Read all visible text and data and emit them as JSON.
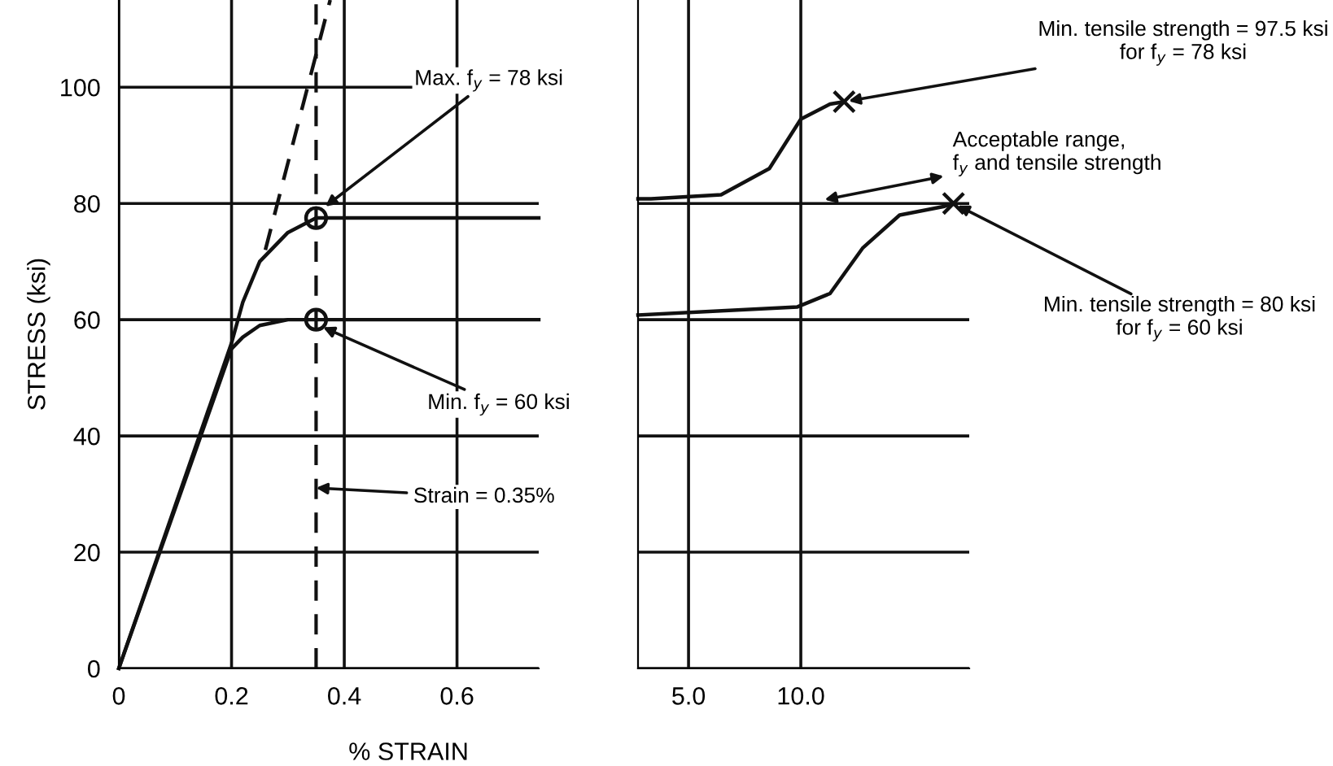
{
  "chart_data": [
    {
      "type": "line",
      "xlabel": "% STRAIN",
      "ylabel": "STRESS (ksi)",
      "xlim": [
        0,
        0.745
      ],
      "ylim": [
        0,
        115
      ],
      "xticks": [
        0,
        0.2,
        0.4,
        0.6
      ],
      "yticks": [
        0,
        20,
        40,
        60,
        80,
        100
      ],
      "grid": true,
      "series": [
        {
          "color": "#111111",
          "x": [
            0,
            0.2,
            0.22,
            0.25,
            0.3,
            0.35,
            0.745
          ],
          "values": [
            0,
            56,
            63,
            70,
            75,
            77.5,
            77.5
          ]
        },
        {
          "color": "#111111",
          "x": [
            0,
            0.2,
            0.22,
            0.25,
            0.3,
            0.35,
            0.745
          ],
          "values": [
            0,
            55,
            57,
            59,
            60,
            60,
            60
          ]
        },
        {
          "color": "#111111",
          "line_style": "dashed",
          "x": [
            0.26,
            0.375
          ],
          "values": [
            72,
            115
          ]
        },
        {
          "type": "scatter",
          "marker": "circle",
          "color": "#111111",
          "x": [
            0.35,
            0.35
          ],
          "values": [
            77.5,
            60
          ]
        }
      ],
      "ref_lines": [
        {
          "axis": "x",
          "value": 0.35,
          "color": "#111111",
          "line_style": "dashed",
          "label": "Strain = 0.35%"
        }
      ],
      "annotations": [
        {
          "text": "Max. f$_{y}$ = 78 ksi",
          "x": 0.36,
          "y": 79
        },
        {
          "text": "Min. f$_{y}$ = 60 ksi",
          "x": 0.355,
          "y": 59
        }
      ]
    },
    {
      "type": "line",
      "xlim": [
        2.75,
        17.5
      ],
      "ylim": [
        0,
        115
      ],
      "xticks": [
        {
          "value": 5,
          "label": "5.0"
        },
        {
          "value": 10,
          "label": "10.0"
        }
      ],
      "yticks": [
        0,
        20,
        40,
        60,
        80
      ],
      "tick_labels": "x",
      "grid": true,
      "series": [
        {
          "color": "#111111",
          "x": [
            2.75,
            3.33,
            6.45,
            8.6,
            10,
            11.3,
            11.93
          ],
          "values": [
            80.8,
            80.8,
            81.5,
            86,
            94.5,
            97.1,
            97.5
          ]
        },
        {
          "color": "#111111",
          "x": [
            2.75,
            9.85,
            11.3,
            12.75,
            14.4,
            16.4,
            16.8
          ],
          "values": [
            60.8,
            62.2,
            64.5,
            72.3,
            78,
            79.5,
            80
          ]
        },
        {
          "type": "scatter",
          "marker": "cross",
          "color": "#111111",
          "x": [
            11.93,
            16.8
          ],
          "values": [
            97.5,
            80
          ]
        }
      ],
      "annotations": [
        {
          "text": "Min. tensile strength = 97.5 ksi\nfor f$_{y}$ = 78 ksi",
          "x": 11.93,
          "y": 97.5
        },
        "Acceptable range,\nf$_{y}$ and tensile strength",
        {
          "text": "Min. tensile strength = 80 ksi\nfor f$_{y}$ = 60 ksi",
          "x": 16.8,
          "y": 80
        }
      ]
    }
  ]
}
